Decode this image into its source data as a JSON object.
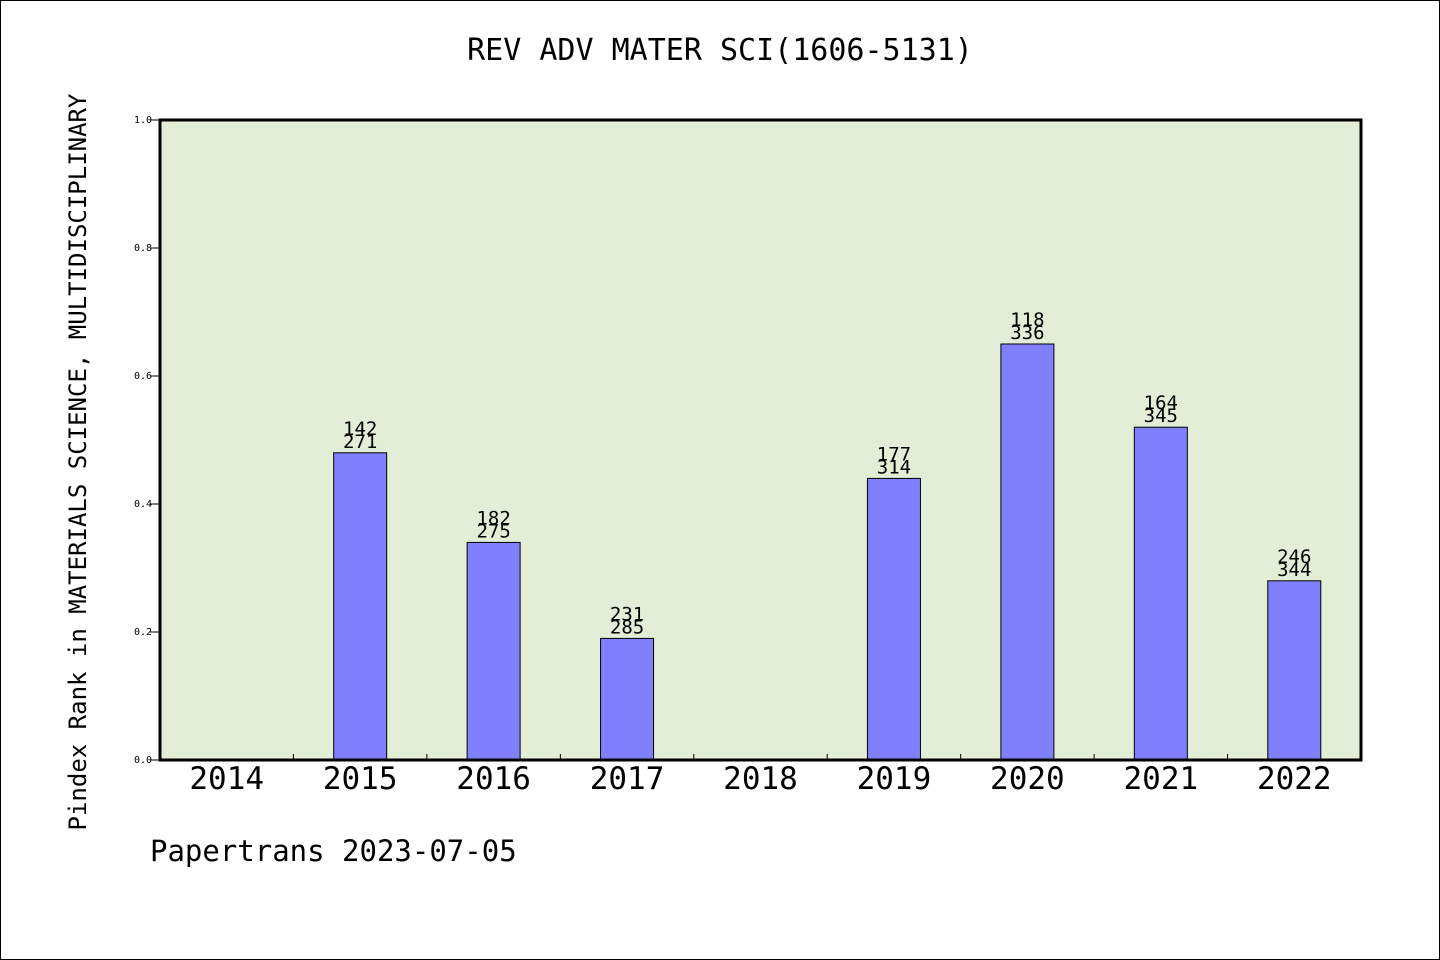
{
  "chart_data": {
    "type": "bar",
    "title": "REV ADV MATER SCI(1606-5131)",
    "ylabel": "Pindex Rank in MATERIALS SCIENCE, MULTIDISCIPLINARY",
    "xlabel": "",
    "categories": [
      "2014",
      "2015",
      "2016",
      "2017",
      "2018",
      "2019",
      "2020",
      "2021",
      "2022"
    ],
    "values": [
      null,
      0.48,
      0.34,
      0.19,
      null,
      0.44,
      0.65,
      0.52,
      0.28
    ],
    "bar_labels": [
      null,
      [
        "142",
        "271"
      ],
      [
        "182",
        "275"
      ],
      [
        "231",
        "285"
      ],
      null,
      [
        "177",
        "314"
      ],
      [
        "118",
        "336"
      ],
      [
        "164",
        "345"
      ],
      [
        "246",
        "344"
      ]
    ],
    "ylim": [
      0,
      1.0
    ],
    "yticks": [
      "0.0",
      "0.2",
      "0.4",
      "0.6",
      "0.8",
      "1.0"
    ],
    "grid": false,
    "colors": {
      "bar": "#8080ff",
      "plot_background": "#e2efd6"
    }
  },
  "footer": "Papertrans 2023-07-05"
}
